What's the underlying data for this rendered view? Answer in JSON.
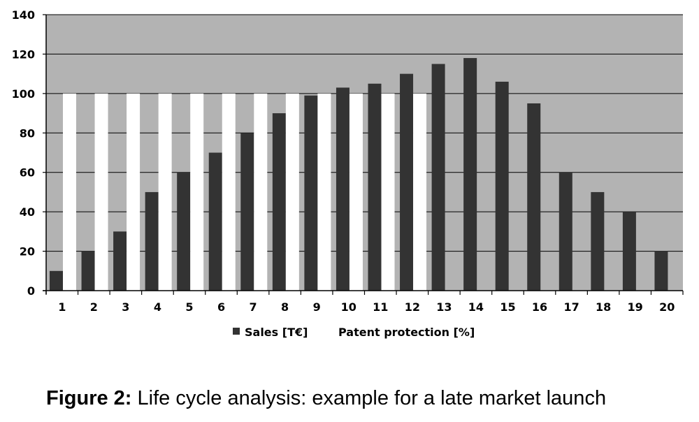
{
  "chart_data": {
    "type": "bar",
    "categories": [
      "1",
      "2",
      "3",
      "4",
      "5",
      "6",
      "7",
      "8",
      "9",
      "10",
      "11",
      "12",
      "13",
      "14",
      "15",
      "16",
      "17",
      "18",
      "19",
      "20"
    ],
    "series": [
      {
        "name": "Sales [T€]",
        "color": "#333333",
        "values": [
          10,
          20,
          30,
          50,
          60,
          70,
          80,
          90,
          99,
          103,
          105,
          110,
          115,
          118,
          106,
          95,
          60,
          50,
          40,
          20
        ]
      },
      {
        "name": "Patent protection [%]",
        "color": "#ffffff",
        "values": [
          100,
          100,
          100,
          100,
          100,
          100,
          100,
          100,
          100,
          100,
          100,
          100,
          0,
          0,
          0,
          0,
          0,
          0,
          0,
          0
        ]
      }
    ],
    "ylim": [
      0,
      140
    ],
    "yticks": [
      "0",
      "20",
      "40",
      "60",
      "80",
      "100",
      "120",
      "140"
    ],
    "grid": true,
    "plot_background": "#b3b3b3",
    "legend_position": "bottom"
  },
  "caption": {
    "label": "Figure 2:",
    "text": " Life cycle analysis: example for a late market launch"
  }
}
